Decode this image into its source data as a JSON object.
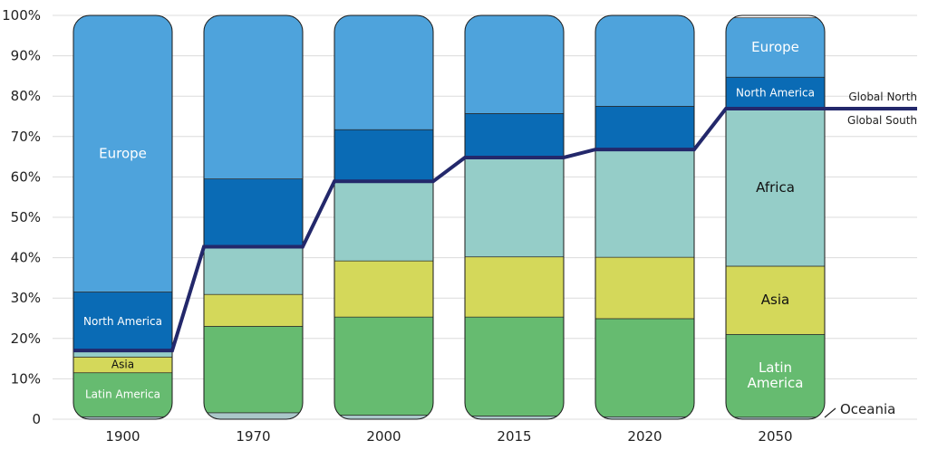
{
  "chart_data": {
    "type": "bar",
    "stacked": true,
    "categories": [
      "1900",
      "1970",
      "2000",
      "2015",
      "2020",
      "2050"
    ],
    "ylim": [
      0,
      100
    ],
    "yticks": [
      0,
      10,
      20,
      30,
      40,
      50,
      60,
      70,
      80,
      90,
      100
    ],
    "ytick_labels": [
      "0",
      "10%",
      "20%",
      "30%",
      "40%",
      "50%",
      "60%",
      "70%",
      "80%",
      "90%",
      "100%"
    ],
    "grid": true,
    "series": [
      {
        "key": "oceania",
        "color": "#aac7c9",
        "values": [
          0.6,
          1.6,
          1.0,
          0.8,
          0.6,
          0.5
        ]
      },
      {
        "key": "latin_america",
        "color": "#66bb70",
        "values": [
          10.9,
          21.4,
          24.3,
          24.5,
          24.3,
          20.5
        ]
      },
      {
        "key": "asia",
        "color": "#d4d85a",
        "values": [
          3.9,
          7.9,
          13.9,
          14.9,
          15.2,
          16.9
        ]
      },
      {
        "key": "africa",
        "color": "#95cdc8",
        "values": [
          1.4,
          11.6,
          19.6,
          24.3,
          26.4,
          38.8
        ]
      },
      {
        "key": "north_america",
        "color": "#0a6bb5",
        "values": [
          14.7,
          17.0,
          12.9,
          11.2,
          11.0,
          8.0
        ]
      },
      {
        "key": "europe",
        "color": "#4ea3dc",
        "values": [
          68.5,
          40.5,
          28.3,
          24.3,
          22.5,
          14.7
        ]
      }
    ],
    "segment_labels": [
      {
        "series": "europe",
        "bar": 0,
        "text": "Europe",
        "color": "#ffffff",
        "size": 15
      },
      {
        "series": "north_america",
        "bar": 0,
        "text": "North America",
        "color": "#ffffff",
        "size": 12
      },
      {
        "series": "asia",
        "bar": 0,
        "text": "Asia",
        "color": "#111111",
        "size": 12
      },
      {
        "series": "latin_america",
        "bar": 0,
        "text": "Latin America",
        "color": "#ffffff",
        "size": 12
      },
      {
        "series": "europe",
        "bar": 5,
        "text": "Europe",
        "color": "#ffffff",
        "size": 15
      },
      {
        "series": "north_america",
        "bar": 5,
        "text": "North America",
        "color": "#ffffff",
        "size": 12
      },
      {
        "series": "africa",
        "bar": 5,
        "text": "Africa",
        "color": "#111111",
        "size": 15
      },
      {
        "series": "asia",
        "bar": 5,
        "text": "Asia",
        "color": "#111111",
        "size": 15
      },
      {
        "series": "latin_america",
        "bar": 5,
        "text": "Latin\nAmerica",
        "color": "#ffffff",
        "size": 15
      }
    ],
    "divider_line": {
      "color": "#23286b",
      "values": [
        17.0,
        42.7,
        58.9,
        64.8,
        66.8,
        76.9
      ]
    },
    "annotations": {
      "global_north": "Global North",
      "global_south": "Global South",
      "oceania": "Oceania"
    }
  }
}
